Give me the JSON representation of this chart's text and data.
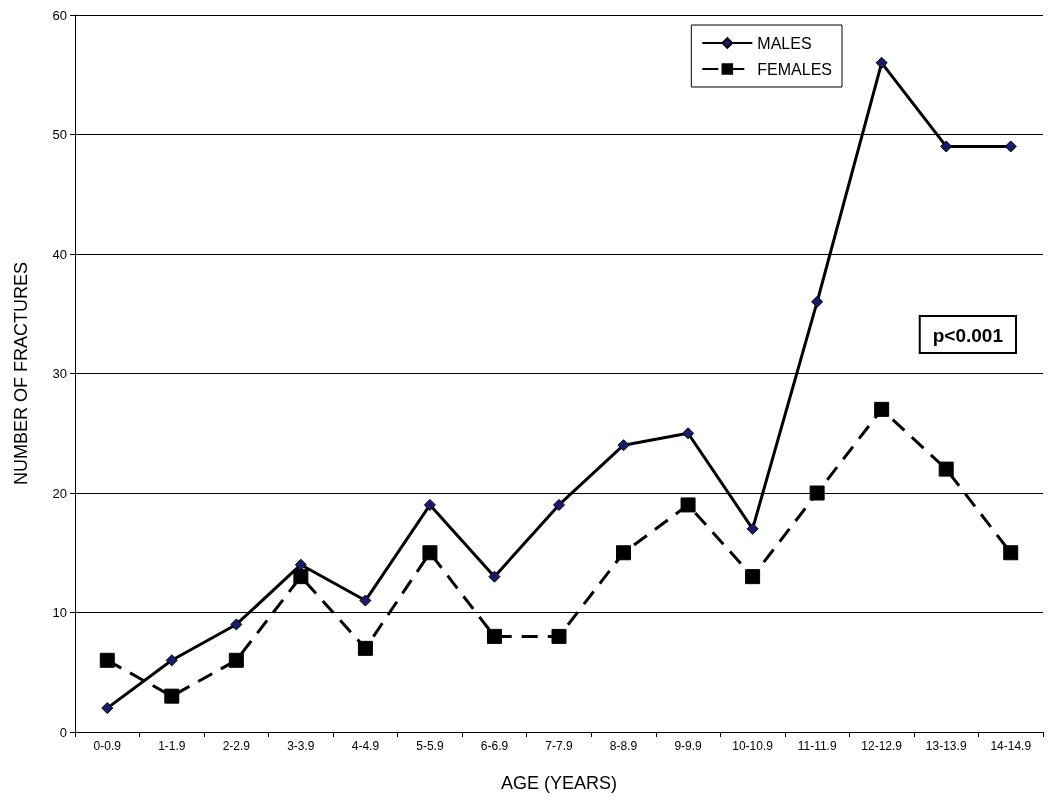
{
  "chart_data": {
    "type": "line",
    "xlabel": "AGE (YEARS)",
    "ylabel": "NUMBER OF FRACTURES",
    "categories": [
      "0-0.9",
      "1-1.9",
      "2-2.9",
      "3-3.9",
      "4-4.9",
      "5-5.9",
      "6-6.9",
      "7-7.9",
      "8-8.9",
      "9-9.9",
      "10-10.9",
      "11-11.9",
      "12-12.9",
      "13-13.9",
      "14-14.9"
    ],
    "series": [
      {
        "name": "MALES",
        "color": "#000000",
        "marker": "diamond",
        "line_style": "solid",
        "values": [
          2,
          6,
          9,
          14,
          11,
          19,
          13,
          19,
          24,
          25,
          17,
          36,
          56,
          49,
          49
        ]
      },
      {
        "name": "FEMALES",
        "color": "#000000",
        "marker": "square",
        "line_style": "dashed",
        "values": [
          6,
          3,
          6,
          13,
          7,
          15,
          8,
          8,
          15,
          19,
          13,
          20,
          27,
          22,
          15
        ]
      }
    ],
    "ylim": [
      0,
      60
    ],
    "yticks": [
      0,
      10,
      20,
      30,
      40,
      50,
      60
    ],
    "grid": "y",
    "legend": "top right",
    "annotations": [
      "p<0.001"
    ]
  }
}
